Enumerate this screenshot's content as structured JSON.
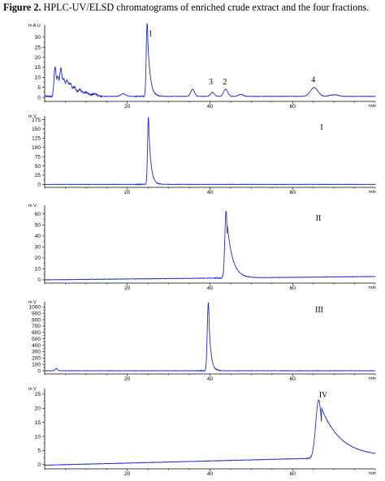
{
  "caption": {
    "label": "Figure 2.",
    "text": " HPLC-UV/ELSD chromatograms of enriched crude extract and the four fractions."
  },
  "colors": {
    "trace": "#1f2bd0",
    "axis": "#000000"
  },
  "chart_data": [
    {
      "type": "line",
      "name": "Enriched crude extract (UV)",
      "yunit": "mAU",
      "xunit": "min",
      "xlim": [
        0,
        80
      ],
      "ylim": [
        -2,
        36
      ],
      "xticks": [
        20,
        40,
        60
      ],
      "yticks": [
        0,
        5,
        10,
        15,
        20,
        25,
        30
      ],
      "baseline": 0.5,
      "peaks": [
        {
          "t": 2.5,
          "h": 14.5,
          "w": 0.25
        },
        {
          "t": 3.2,
          "h": 9.5,
          "w": 0.25
        },
        {
          "t": 3.9,
          "h": 13.5,
          "w": 0.25
        },
        {
          "t": 4.6,
          "h": 8.5,
          "w": 0.3
        },
        {
          "t": 5.4,
          "h": 7.5,
          "w": 0.3
        },
        {
          "t": 6.2,
          "h": 6.0,
          "w": 0.35
        },
        {
          "t": 7.2,
          "h": 4.5,
          "w": 0.4
        },
        {
          "t": 8.5,
          "h": 3.2,
          "w": 0.5
        },
        {
          "t": 10.0,
          "h": 2.0,
          "w": 0.6
        },
        {
          "t": 12.0,
          "h": 1.2,
          "w": 0.7
        },
        {
          "t": 19.0,
          "h": 1.3,
          "w": 0.6
        },
        {
          "t": 24.8,
          "h": 37.0,
          "w": 0.22,
          "tail": 0.6
        },
        {
          "t": 35.8,
          "h": 3.5,
          "w": 0.45
        },
        {
          "t": 40.6,
          "h": 2.0,
          "w": 0.45
        },
        {
          "t": 43.8,
          "h": 3.6,
          "w": 0.5
        },
        {
          "t": 47.5,
          "h": 1.0,
          "w": 0.6
        },
        {
          "t": 65.2,
          "h": 4.4,
          "w": 0.9
        },
        {
          "t": 70.0,
          "h": 0.8,
          "w": 1.0
        }
      ],
      "peak_labels": [
        {
          "text": "1",
          "t": 25.6,
          "v": 30.5
        },
        {
          "text": "3",
          "t": 40.2,
          "v": 6.5
        },
        {
          "text": "2",
          "t": 43.6,
          "v": 6.5
        },
        {
          "text": "4",
          "t": 65.0,
          "v": 7.5
        }
      ]
    },
    {
      "type": "line",
      "name": "Fraction I (ELSD)",
      "yunit": "mV",
      "xunit": "min",
      "fraction_label": "I",
      "xlim": [
        0,
        80
      ],
      "ylim": [
        -8,
        185
      ],
      "xticks": [
        20,
        40,
        60
      ],
      "yticks": [
        0,
        25,
        50,
        75,
        100,
        125,
        150,
        175
      ],
      "baseline": 0.0,
      "peaks": [
        {
          "t": 25.1,
          "h": 182,
          "w": 0.2,
          "tail": 0.55
        }
      ]
    },
    {
      "type": "line",
      "name": "Fraction II (ELSD)",
      "yunit": "mV",
      "xunit": "min",
      "fraction_label": "II",
      "xlim": [
        0,
        80
      ],
      "ylim": [
        -3,
        68
      ],
      "xticks": [
        20,
        40,
        60
      ],
      "yticks": [
        0,
        10,
        20,
        30,
        40,
        50,
        60
      ],
      "baseline": 0.0,
      "drift_end": 3.0,
      "peaks": [
        {
          "t": 43.9,
          "h": 61,
          "w": 0.3,
          "tail": 1.3
        }
      ]
    },
    {
      "type": "line",
      "name": "Fraction III (ELSD)",
      "yunit": "mV",
      "xunit": "min",
      "fraction_label": "III",
      "xlim": [
        0,
        80
      ],
      "ylim": [
        -50,
        1080
      ],
      "xticks": [
        20,
        40,
        60
      ],
      "yticks": [
        0,
        100,
        200,
        300,
        400,
        500,
        600,
        700,
        800,
        900,
        1000
      ],
      "baseline": 0.0,
      "peaks": [
        {
          "t": 2.8,
          "h": 35,
          "w": 0.3
        },
        {
          "t": 39.6,
          "h": 1060,
          "w": 0.25,
          "tail": 0.5
        }
      ]
    },
    {
      "type": "line",
      "name": "Fraction IV (ELSD)",
      "yunit": "mV",
      "xunit": "min",
      "fraction_label": "IV",
      "xlim": [
        0,
        80
      ],
      "ylim": [
        -1.5,
        27
      ],
      "xticks": [
        20,
        40,
        60
      ],
      "yticks": [
        0,
        5,
        10,
        15,
        20,
        25
      ],
      "baseline": -0.2,
      "drift_end": 3.0,
      "peaks": [
        {
          "t": 66.3,
          "h": 20.5,
          "w": 0.7,
          "tail": 4.8
        }
      ]
    }
  ]
}
